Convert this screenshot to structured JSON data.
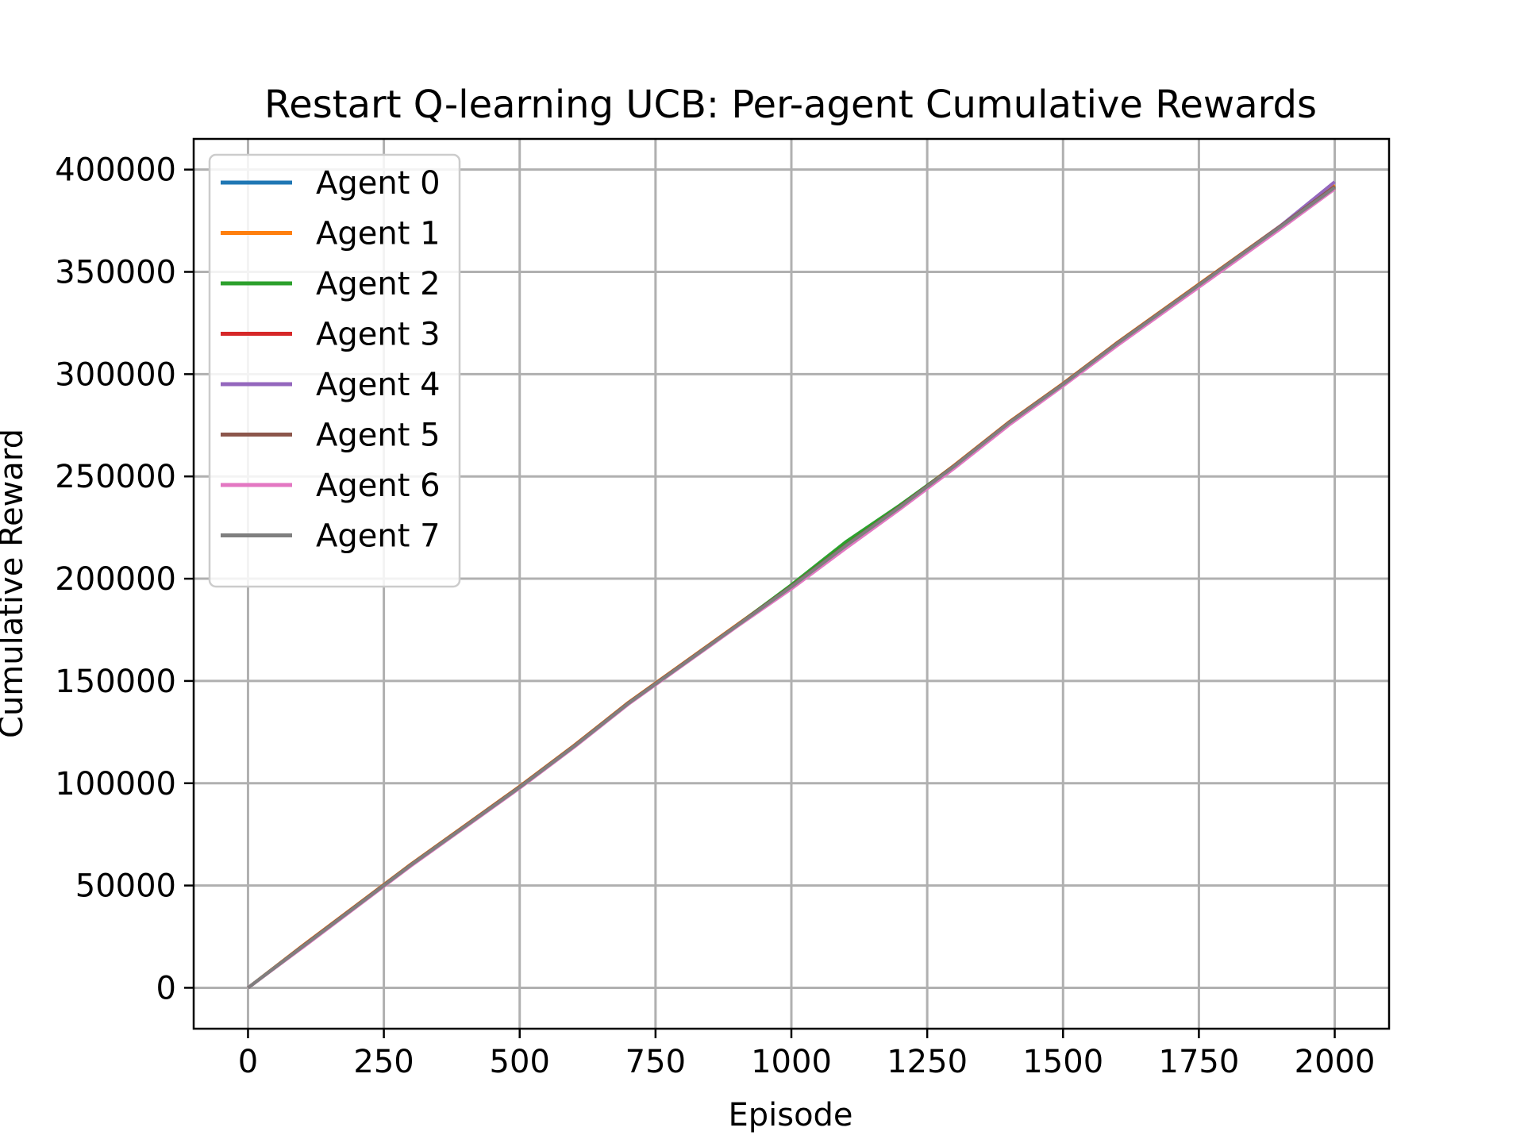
{
  "chart_data": {
    "type": "line",
    "title": "Restart Q-learning UCB: Per-agent Cumulative Rewards",
    "xlabel": "Episode",
    "ylabel": "Cumulative Reward",
    "xlim": [
      -100,
      2100
    ],
    "ylim": [
      -20000,
      415000
    ],
    "xticks": [
      0,
      250,
      500,
      750,
      1000,
      1250,
      1500,
      1750,
      2000
    ],
    "yticks": [
      0,
      50000,
      100000,
      150000,
      200000,
      250000,
      300000,
      350000,
      400000
    ],
    "xtick_labels": [
      "0",
      "250",
      "500",
      "750",
      "1000",
      "1250",
      "1500",
      "1750",
      "2000"
    ],
    "ytick_labels": [
      "0",
      "50000",
      "100000",
      "150000",
      "200000",
      "250000",
      "300000",
      "350000",
      "400000"
    ],
    "grid": true,
    "legend_position": "upper-left",
    "x": [
      0,
      100,
      200,
      300,
      400,
      500,
      600,
      700,
      800,
      900,
      1000,
      1100,
      1200,
      1300,
      1400,
      1500,
      1600,
      1700,
      1800,
      1900,
      2000
    ],
    "series": [
      {
        "name": "Agent 0",
        "color": "#1f77b4",
        "values": [
          0,
          20000,
          40000,
          60000,
          79000,
          98000,
          118000,
          139000,
          158000,
          177000,
          196000,
          216000,
          235000,
          255000,
          276000,
          295000,
          315000,
          334000,
          353000,
          372000,
          392000
        ]
      },
      {
        "name": "Agent 1",
        "color": "#ff7f0e",
        "values": [
          0,
          20500,
          40500,
          60500,
          79500,
          98500,
          118500,
          139500,
          158500,
          177500,
          196500,
          216500,
          235500,
          255500,
          276500,
          295500,
          315500,
          334500,
          353500,
          372500,
          392500
        ]
      },
      {
        "name": "Agent 2",
        "color": "#2ca02c",
        "values": [
          0,
          20200,
          40200,
          60200,
          79200,
          98200,
          118200,
          139200,
          158200,
          177200,
          197000,
          218000,
          236000,
          255200,
          276200,
          295200,
          315200,
          334200,
          353200,
          372200,
          391500
        ]
      },
      {
        "name": "Agent 3",
        "color": "#d62728",
        "values": [
          0,
          19800,
          39800,
          59800,
          78800,
          97800,
          117800,
          138800,
          157800,
          176800,
          195800,
          215800,
          234800,
          254800,
          275800,
          294800,
          314800,
          333800,
          352800,
          371800,
          391000
        ]
      },
      {
        "name": "Agent 4",
        "color": "#9467bd",
        "values": [
          0,
          20100,
          40100,
          60100,
          79100,
          98100,
          118100,
          139100,
          158100,
          177100,
          196100,
          216100,
          235100,
          255100,
          276100,
          295100,
          315100,
          334100,
          353100,
          372500,
          394000
        ]
      },
      {
        "name": "Agent 5",
        "color": "#8c564b",
        "values": [
          0,
          20300,
          40300,
          60300,
          79300,
          98300,
          118300,
          139300,
          158300,
          177300,
          196300,
          216300,
          235300,
          255300,
          276300,
          295300,
          315300,
          334300,
          353300,
          372300,
          391800
        ]
      },
      {
        "name": "Agent 6",
        "color": "#e377c2",
        "values": [
          0,
          19600,
          39600,
          59600,
          78600,
          97600,
          117600,
          138600,
          157600,
          176600,
          195000,
          214800,
          234000,
          254000,
          275000,
          294200,
          314000,
          333000,
          352000,
          371000,
          390500
        ]
      },
      {
        "name": "Agent 7",
        "color": "#7f7f7f",
        "values": [
          0,
          20000,
          40000,
          60000,
          79000,
          98000,
          118000,
          139000,
          158000,
          177000,
          196000,
          216000,
          235000,
          255000,
          276000,
          295000,
          315000,
          334000,
          353000,
          372000,
          391200
        ]
      }
    ]
  }
}
